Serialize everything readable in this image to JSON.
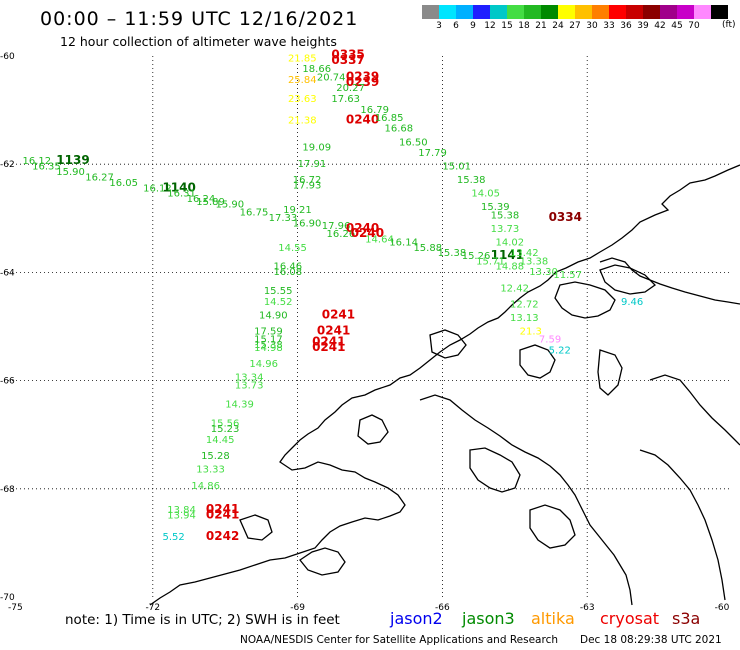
{
  "header": {
    "title": "00:00  –  11:59 UTC 12/16/2021",
    "subtitle": "12 hour collection of altimeter wave heights"
  },
  "legend": {
    "colors": [
      "#8a8a8a",
      "#00e5ff",
      "#00b0ff",
      "#1f1fff",
      "#00c8c8",
      "#44dd44",
      "#22b922",
      "#008a00",
      "#ffff00",
      "#ffc000",
      "#ff7f00",
      "#ff0000",
      "#c80000",
      "#8b0000",
      "#a0008a",
      "#c800c8",
      "#ff88ff",
      "#000000"
    ],
    "labels": [
      "3",
      "6",
      "9",
      "12",
      "15",
      "18",
      "21",
      "24",
      "27",
      "30",
      "33",
      "36",
      "39",
      "42",
      "45",
      "70"
    ],
    "unit": "(ft)"
  },
  "axes": {
    "lat_labels": [
      "-60",
      "-62",
      "-64",
      "-66",
      "-68",
      "-70"
    ],
    "lon_labels": [
      "-75",
      "-72",
      "-69",
      "-66",
      "-63",
      "-60"
    ]
  },
  "observations": [
    {
      "text": "16.12",
      "color": "#22b922",
      "lon": -74.7,
      "lat": -62.0
    },
    {
      "text": "1139",
      "color": "#006400",
      "lon": -74.0,
      "lat": -62.0,
      "bold": true
    },
    {
      "text": "16.35",
      "color": "#22b922",
      "lon": -74.5,
      "lat": -62.1
    },
    {
      "text": "15.90",
      "color": "#22b922",
      "lon": -74.0,
      "lat": -62.2
    },
    {
      "text": "16.27",
      "color": "#22b922",
      "lon": -73.4,
      "lat": -62.3
    },
    {
      "text": "16.05",
      "color": "#22b922",
      "lon": -72.9,
      "lat": -62.4
    },
    {
      "text": "16.12",
      "color": "#22b922",
      "lon": -72.2,
      "lat": -62.5
    },
    {
      "text": "1140",
      "color": "#006400",
      "lon": -71.8,
      "lat": -62.5,
      "bold": true
    },
    {
      "text": "16.31",
      "color": "#22b922",
      "lon": -71.7,
      "lat": -62.6
    },
    {
      "text": "16.24",
      "color": "#22b922",
      "lon": -71.3,
      "lat": -62.7
    },
    {
      "text": "15.90",
      "color": "#22b922",
      "lon": -70.7,
      "lat": -62.8
    },
    {
      "text": "15.89",
      "color": "#22b922",
      "lon": -71.1,
      "lat": -62.75
    },
    {
      "text": "16.75",
      "color": "#22b922",
      "lon": -70.2,
      "lat": -62.95
    },
    {
      "text": "17.33",
      "color": "#22b922",
      "lon": -69.6,
      "lat": -63.05
    },
    {
      "text": "16.90",
      "color": "#22b922",
      "lon": -69.1,
      "lat": -63.15
    },
    {
      "text": "17.96",
      "color": "#22b922",
      "lon": -68.5,
      "lat": -63.2
    },
    {
      "text": "0240",
      "color": "#dd0000",
      "lon": -68.0,
      "lat": -63.25,
      "bold": true
    },
    {
      "text": "16.26",
      "color": "#22b922",
      "lon": -68.4,
      "lat": -63.35
    },
    {
      "text": "0240",
      "color": "#dd0000",
      "lon": -67.9,
      "lat": -63.35,
      "bold": true
    },
    {
      "text": "14.64",
      "color": "#44dd44",
      "lon": -67.6,
      "lat": -63.45
    },
    {
      "text": "16.14",
      "color": "#22b922",
      "lon": -67.1,
      "lat": -63.5
    },
    {
      "text": "15.88",
      "color": "#22b922",
      "lon": -66.6,
      "lat": -63.6
    },
    {
      "text": "15.38",
      "color": "#22b922",
      "lon": -66.1,
      "lat": -63.7
    },
    {
      "text": "15.26",
      "color": "#22b922",
      "lon": -65.6,
      "lat": -63.75
    },
    {
      "text": "1141",
      "color": "#006400",
      "lon": -65.0,
      "lat": -63.75,
      "bold": true
    },
    {
      "text": "15.71",
      "color": "#44dd44",
      "lon": -65.3,
      "lat": -63.85
    },
    {
      "text": "14.88",
      "color": "#44dd44",
      "lon": -64.9,
      "lat": -63.95
    },
    {
      "text": "13.30",
      "color": "#44dd44",
      "lon": -64.2,
      "lat": -64.05
    },
    {
      "text": "11.57",
      "color": "#44dd44",
      "lon": -63.7,
      "lat": -64.1
    },
    {
      "text": "21.85",
      "color": "#ffff00",
      "lon": -69.2,
      "lat": -60.1
    },
    {
      "text": "0335",
      "color": "#dd0000",
      "lon": -68.3,
      "lat": -60.05,
      "bold": true
    },
    {
      "text": "0337",
      "color": "#dd0000",
      "lon": -68.3,
      "lat": -60.15,
      "bold": true
    },
    {
      "text": "18.66",
      "color": "#22b922",
      "lon": -68.9,
      "lat": -60.3
    },
    {
      "text": "20.74",
      "color": "#22b922",
      "lon": -68.6,
      "lat": -60.45
    },
    {
      "text": "25.84",
      "color": "#ffc000",
      "lon": -69.2,
      "lat": -60.5
    },
    {
      "text": "0239",
      "color": "#dd0000",
      "lon": -68.0,
      "lat": -60.45,
      "bold": true
    },
    {
      "text": "0239",
      "color": "#dd0000",
      "lon": -68.0,
      "lat": -60.55,
      "bold": true
    },
    {
      "text": "20.27",
      "color": "#22b922",
      "lon": -68.2,
      "lat": -60.65
    },
    {
      "text": "23.63",
      "color": "#ffff00",
      "lon": -69.2,
      "lat": -60.85
    },
    {
      "text": "17.63",
      "color": "#22b922",
      "lon": -68.3,
      "lat": -60.85
    },
    {
      "text": "16.79",
      "color": "#22b922",
      "lon": -67.7,
      "lat": -61.05
    },
    {
      "text": "21.38",
      "color": "#ffff00",
      "lon": -69.2,
      "lat": -61.25
    },
    {
      "text": "0240",
      "color": "#dd0000",
      "lon": -68.0,
      "lat": -61.25,
      "bold": true
    },
    {
      "text": "16.85",
      "color": "#22b922",
      "lon": -67.4,
      "lat": -61.2
    },
    {
      "text": "16.68",
      "color": "#22b922",
      "lon": -67.2,
      "lat": -61.4
    },
    {
      "text": "16.50",
      "color": "#22b922",
      "lon": -66.9,
      "lat": -61.65
    },
    {
      "text": "19.09",
      "color": "#22b922",
      "lon": -68.9,
      "lat": -61.75
    },
    {
      "text": "17.79",
      "color": "#22b922",
      "lon": -66.5,
      "lat": -61.85
    },
    {
      "text": "17.91",
      "color": "#22b922",
      "lon": -69.0,
      "lat": -62.05
    },
    {
      "text": "15.01",
      "color": "#22b922",
      "lon": -66.0,
      "lat": -62.1
    },
    {
      "text": "16.72",
      "color": "#22b922",
      "lon": -69.1,
      "lat": -62.35
    },
    {
      "text": "17.93",
      "color": "#22b922",
      "lon": -69.1,
      "lat": -62.45
    },
    {
      "text": "15.38",
      "color": "#22b922",
      "lon": -65.7,
      "lat": -62.35
    },
    {
      "text": "14.05",
      "color": "#44dd44",
      "lon": -65.4,
      "lat": -62.6
    },
    {
      "text": "19.21",
      "color": "#22b922",
      "lon": -69.3,
      "lat": -62.9
    },
    {
      "text": "15.39",
      "color": "#22b922",
      "lon": -65.2,
      "lat": -62.85
    },
    {
      "text": "15.38",
      "color": "#22b922",
      "lon": -65.0,
      "lat": -63.0
    },
    {
      "text": "0334",
      "color": "#8b0000",
      "lon": -63.8,
      "lat": -63.05,
      "bold": true
    },
    {
      "text": "13.73",
      "color": "#44dd44",
      "lon": -65.0,
      "lat": -63.25
    },
    {
      "text": "14.02",
      "color": "#44dd44",
      "lon": -64.9,
      "lat": -63.5
    },
    {
      "text": "13.42",
      "color": "#44dd44",
      "lon": -64.6,
      "lat": -63.7
    },
    {
      "text": "13.38",
      "color": "#44dd44",
      "lon": -64.4,
      "lat": -63.85
    },
    {
      "text": "14.55",
      "color": "#44dd44",
      "lon": -69.4,
      "lat": -63.6
    },
    {
      "text": "16.46",
      "color": "#22b922",
      "lon": -69.5,
      "lat": -63.95
    },
    {
      "text": "16.08",
      "color": "#22b922",
      "lon": -69.5,
      "lat": -64.05
    },
    {
      "text": "12.42",
      "color": "#44dd44",
      "lon": -64.8,
      "lat": -64.35
    },
    {
      "text": "12.72",
      "color": "#44dd44",
      "lon": -64.6,
      "lat": -64.65
    },
    {
      "text": "13.13",
      "color": "#44dd44",
      "lon": -64.6,
      "lat": -64.9
    },
    {
      "text": "21.3",
      "color": "#ffff00",
      "lon": -64.4,
      "lat": -65.15
    },
    {
      "text": "7.59",
      "color": "#ff88ff",
      "lon": -64.0,
      "lat": -65.3
    },
    {
      "text": "5.22",
      "color": "#00c8c8",
      "lon": -63.8,
      "lat": -65.5
    },
    {
      "text": "9.46",
      "color": "#00c8c8",
      "lon": -62.3,
      "lat": -64.6
    },
    {
      "text": "15.55",
      "color": "#22b922",
      "lon": -69.7,
      "lat": -64.4
    },
    {
      "text": "14.52",
      "color": "#44dd44",
      "lon": -69.7,
      "lat": -64.6
    },
    {
      "text": "14.90",
      "color": "#22b922",
      "lon": -69.8,
      "lat": -64.85
    },
    {
      "text": "0241",
      "color": "#dd0000",
      "lon": -68.5,
      "lat": -64.85,
      "bold": true
    },
    {
      "text": "17.59",
      "color": "#22b922",
      "lon": -69.9,
      "lat": -65.15
    },
    {
      "text": "0241",
      "color": "#dd0000",
      "lon": -68.6,
      "lat": -65.15,
      "bold": true
    },
    {
      "text": "15.17",
      "color": "#22b922",
      "lon": -69.9,
      "lat": -65.3
    },
    {
      "text": "15.38",
      "color": "#22b922",
      "lon": -69.9,
      "lat": -65.4
    },
    {
      "text": "14.98",
      "color": "#44dd44",
      "lon": -69.9,
      "lat": -65.45
    },
    {
      "text": "0241",
      "color": "#dd0000",
      "lon": -68.7,
      "lat": -65.35,
      "bold": true
    },
    {
      "text": "0241",
      "color": "#dd0000",
      "lon": -68.7,
      "lat": -65.45,
      "bold": true
    },
    {
      "text": "14.96",
      "color": "#44dd44",
      "lon": -70.0,
      "lat": -65.75
    },
    {
      "text": "13.34",
      "color": "#44dd44",
      "lon": -70.3,
      "lat": -66.0
    },
    {
      "text": "13.73",
      "color": "#44dd44",
      "lon": -70.3,
      "lat": -66.15
    },
    {
      "text": "14.39",
      "color": "#44dd44",
      "lon": -70.5,
      "lat": -66.5
    },
    {
      "text": "15.56",
      "color": "#44dd44",
      "lon": -70.8,
      "lat": -66.85
    },
    {
      "text": "15.23",
      "color": "#22b922",
      "lon": -70.8,
      "lat": -66.95
    },
    {
      "text": "14.45",
      "color": "#44dd44",
      "lon": -70.9,
      "lat": -67.15
    },
    {
      "text": "15.28",
      "color": "#22b922",
      "lon": -71.0,
      "lat": -67.45
    },
    {
      "text": "13.33",
      "color": "#44dd44",
      "lon": -71.1,
      "lat": -67.7
    },
    {
      "text": "14.86",
      "color": "#44dd44",
      "lon": -71.2,
      "lat": -68.0
    },
    {
      "text": "13.84",
      "color": "#44dd44",
      "lon": -71.7,
      "lat": -68.45
    },
    {
      "text": "13.94",
      "color": "#44dd44",
      "lon": -71.7,
      "lat": -68.55
    },
    {
      "text": "0241",
      "color": "#dd0000",
      "lon": -70.9,
      "lat": -68.45,
      "bold": true
    },
    {
      "text": "0241",
      "color": "#dd0000",
      "lon": -70.9,
      "lat": -68.55,
      "bold": true
    },
    {
      "text": "5.52",
      "color": "#00c8c8",
      "lon": -71.8,
      "lat": -68.95
    },
    {
      "text": "0242",
      "color": "#dd0000",
      "lon": -70.9,
      "lat": -68.95,
      "bold": true
    }
  ],
  "footer": {
    "note": "note:  1) Time is in UTC;  2) SWH is in feet",
    "satellites": [
      {
        "name": "jason2",
        "color": "#0000ee"
      },
      {
        "name": "jason3",
        "color": "#008a00"
      },
      {
        "name": "altika",
        "color": "#ff9900"
      },
      {
        "name": "cryosat",
        "color": "#ee0000"
      },
      {
        "name": "s3a",
        "color": "#8b0000"
      }
    ],
    "credit": "NOAA/NESDIS Center for Satellite Applications and Research",
    "timestamp": "Dec 18 08:29:38 UTC 2021"
  }
}
